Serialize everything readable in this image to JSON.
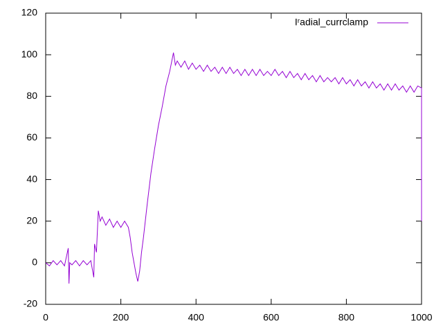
{
  "chart_data": {
    "type": "line",
    "xlim": [
      0,
      1000
    ],
    "xticks": [
      0,
      200,
      400,
      600,
      800,
      1000
    ],
    "ylim": [
      -20,
      120
    ],
    "yticks": [
      -20,
      0,
      20,
      40,
      60,
      80,
      100,
      120
    ],
    "x": [
      0,
      10,
      20,
      30,
      40,
      50,
      60,
      62,
      64,
      70,
      80,
      90,
      100,
      110,
      120,
      128,
      130,
      135,
      140,
      145,
      150,
      160,
      170,
      180,
      190,
      200,
      210,
      220,
      225,
      230,
      235,
      240,
      245,
      250,
      255,
      260,
      270,
      280,
      290,
      300,
      310,
      320,
      330,
      340,
      345,
      350,
      360,
      370,
      380,
      390,
      400,
      410,
      420,
      430,
      440,
      450,
      460,
      470,
      480,
      490,
      500,
      510,
      520,
      530,
      540,
      550,
      560,
      570,
      580,
      590,
      600,
      610,
      620,
      630,
      640,
      650,
      660,
      670,
      680,
      690,
      700,
      710,
      720,
      730,
      740,
      750,
      760,
      770,
      780,
      790,
      800,
      810,
      820,
      830,
      840,
      850,
      860,
      870,
      880,
      890,
      900,
      910,
      920,
      930,
      940,
      950,
      960,
      970,
      980,
      990,
      1000,
      1000
    ],
    "series": [
      {
        "name": "Iʳadial_currclamp",
        "color": "#9400d3",
        "values": [
          0,
          -1.5,
          1,
          -1,
          1,
          -1.5,
          7,
          -10,
          0,
          -1,
          1,
          -1.5,
          1,
          -1,
          1,
          -7,
          9,
          5,
          25,
          20,
          22,
          18,
          21,
          17,
          20,
          17,
          20,
          17,
          12,
          5,
          0,
          -5,
          -9,
          -4,
          5,
          12,
          28,
          43,
          55,
          66,
          75,
          85,
          92,
          101,
          95,
          97,
          94,
          97,
          93,
          96,
          93,
          95,
          92,
          95,
          92,
          94,
          91,
          94,
          91,
          94,
          91,
          93,
          90,
          93,
          90,
          93,
          90,
          93,
          90,
          92,
          90,
          93,
          90,
          92,
          89,
          92,
          89,
          91,
          88,
          91,
          88,
          90,
          87,
          90,
          87,
          89,
          87,
          89,
          86,
          89,
          86,
          88,
          85,
          88,
          85,
          87,
          84,
          87,
          84,
          86,
          83,
          86,
          83,
          86,
          83,
          85,
          82,
          85,
          82,
          85,
          84,
          20
        ]
      }
    ],
    "legend": "top-right"
  }
}
